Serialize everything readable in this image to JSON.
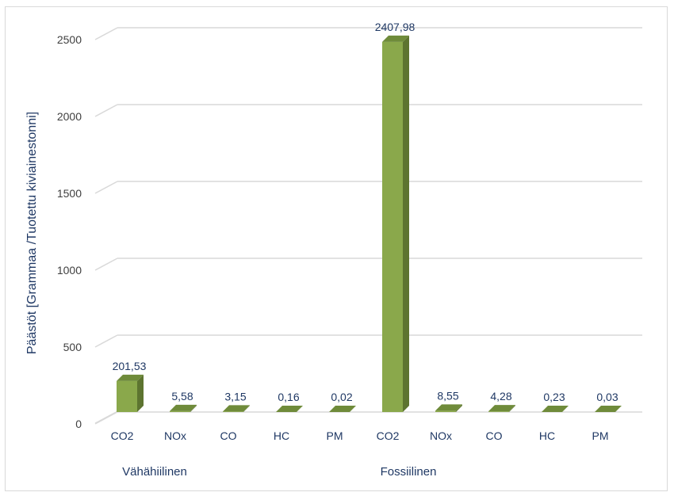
{
  "chart_data": {
    "type": "bar",
    "ylabel": "Päästöt [Grammaa /Tuotettu kiviainestonni]",
    "ylim": [
      0,
      2500
    ],
    "yticks": [
      0,
      500,
      1000,
      1500,
      2000,
      2500
    ],
    "grid": true,
    "legend": "none",
    "bar_color": "#8aa84b",
    "groups": [
      {
        "name": "Vähähiilinen",
        "categories": [
          "CO2",
          "NOx",
          "CO",
          "HC",
          "PM"
        ],
        "values": [
          201.53,
          5.58,
          3.15,
          0.16,
          0.02
        ],
        "labels": [
          "201,53",
          "5,58",
          "3,15",
          "0,16",
          "0,02"
        ]
      },
      {
        "name": "Fossiilinen",
        "categories": [
          "CO2",
          "NOx",
          "CO",
          "HC",
          "PM"
        ],
        "values": [
          2407.98,
          8.55,
          4.28,
          0.23,
          0.03
        ],
        "labels": [
          "2407,98",
          "8,55",
          "4,28",
          "0,23",
          "0,03"
        ]
      }
    ]
  }
}
